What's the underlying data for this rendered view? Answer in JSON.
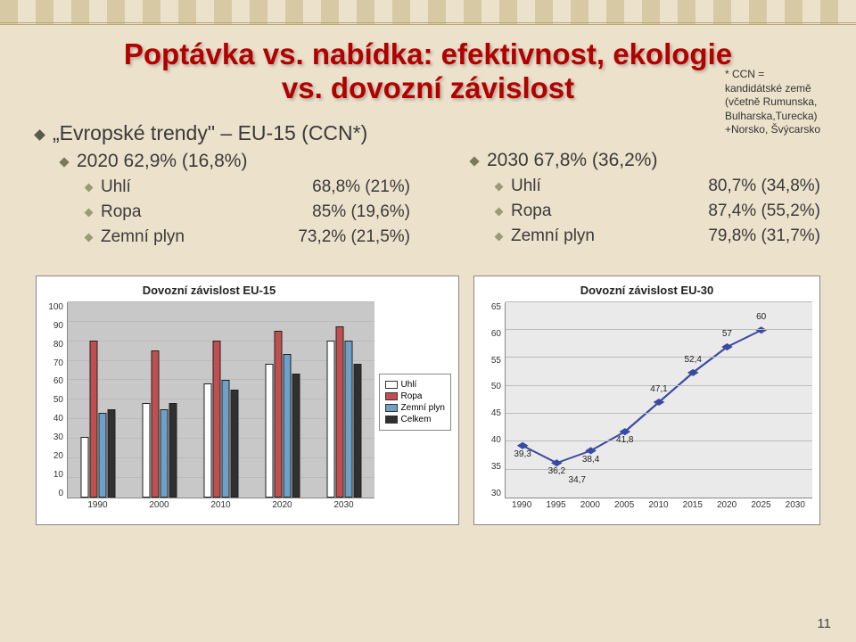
{
  "title_line1": "Poptávka vs. nabídka: efektivnost, ekologie",
  "title_line2": "vs. dovozní závislost",
  "footnote_l1": "* CCN =",
  "footnote_l2": "kandidátské země",
  "footnote_l3": "(včetně Rumunska,",
  "footnote_l4": "Bulharska,Turecka)",
  "footnote_l5": "+Norsko, Švýcarsko",
  "left": {
    "h0": "„Evropské trendy\" – EU-15 (CCN*)",
    "h1": "2020 62,9% (16,8%)",
    "r1_l": "Uhlí",
    "r1_v": "68,8% (21%)",
    "r2_l": "Ropa",
    "r2_v": "85% (19,6%)",
    "r3_l": "Zemní plyn",
    "r3_v": "73,2% (21,5%)"
  },
  "right": {
    "h1": "2030 67,8% (36,2%)",
    "r1_l": "Uhlí",
    "r1_v": "80,7% (34,8%)",
    "r2_l": "Ropa",
    "r2_v": "87,4% (55,2%)",
    "r3_l": "Zemní plyn",
    "r3_v": "79,8% (31,7%)"
  },
  "bar_chart": {
    "title": "Dovozní závislost EU-15",
    "type": "bar",
    "ylim": [
      0,
      100
    ],
    "ytick_step": 10,
    "categories": [
      "1990",
      "2000",
      "2010",
      "2020",
      "2030"
    ],
    "series": [
      {
        "name": "Uhlí",
        "color": "#ffffff",
        "values": [
          31,
          48,
          58,
          68,
          80
        ]
      },
      {
        "name": "Ropa",
        "color": "#c05050",
        "values": [
          80,
          75,
          80,
          85,
          87
        ]
      },
      {
        "name": "Zemní plyn",
        "color": "#6ea0c8",
        "values": [
          43,
          45,
          60,
          73,
          80
        ]
      },
      {
        "name": "Celkem",
        "color": "#303030",
        "values": [
          45,
          48,
          55,
          63,
          68
        ]
      }
    ],
    "background_color": "#c8c8c8",
    "grid_color": "#bbbbbb"
  },
  "line_chart": {
    "title": "Dovozní závislost EU-30",
    "type": "line",
    "ylim": [
      30,
      65
    ],
    "ytick_step": 5,
    "x_categories": [
      "1990",
      "1995",
      "2000",
      "2005",
      "2010",
      "2015",
      "2020",
      "2025",
      "2030"
    ],
    "series": [
      {
        "color": "#3a4aa0",
        "marker": "diamond",
        "values": [
          39.3,
          36.2,
          38.4,
          41.8,
          47.1,
          52.4,
          57,
          60,
          null
        ],
        "labels_above": [
          false,
          false,
          false,
          false,
          true,
          true,
          true,
          true,
          false
        ]
      }
    ],
    "extra_label": {
      "text": "34,7",
      "x_index": 1.6,
      "y": 34.7
    },
    "shown_labels": [
      "39,3",
      "36,2",
      "38,4",
      "41,8",
      "47,1",
      "52,4",
      "57",
      "60"
    ],
    "background_color": "#eaeaea",
    "grid_color": "#bbbbbb"
  },
  "slide_number": "11"
}
